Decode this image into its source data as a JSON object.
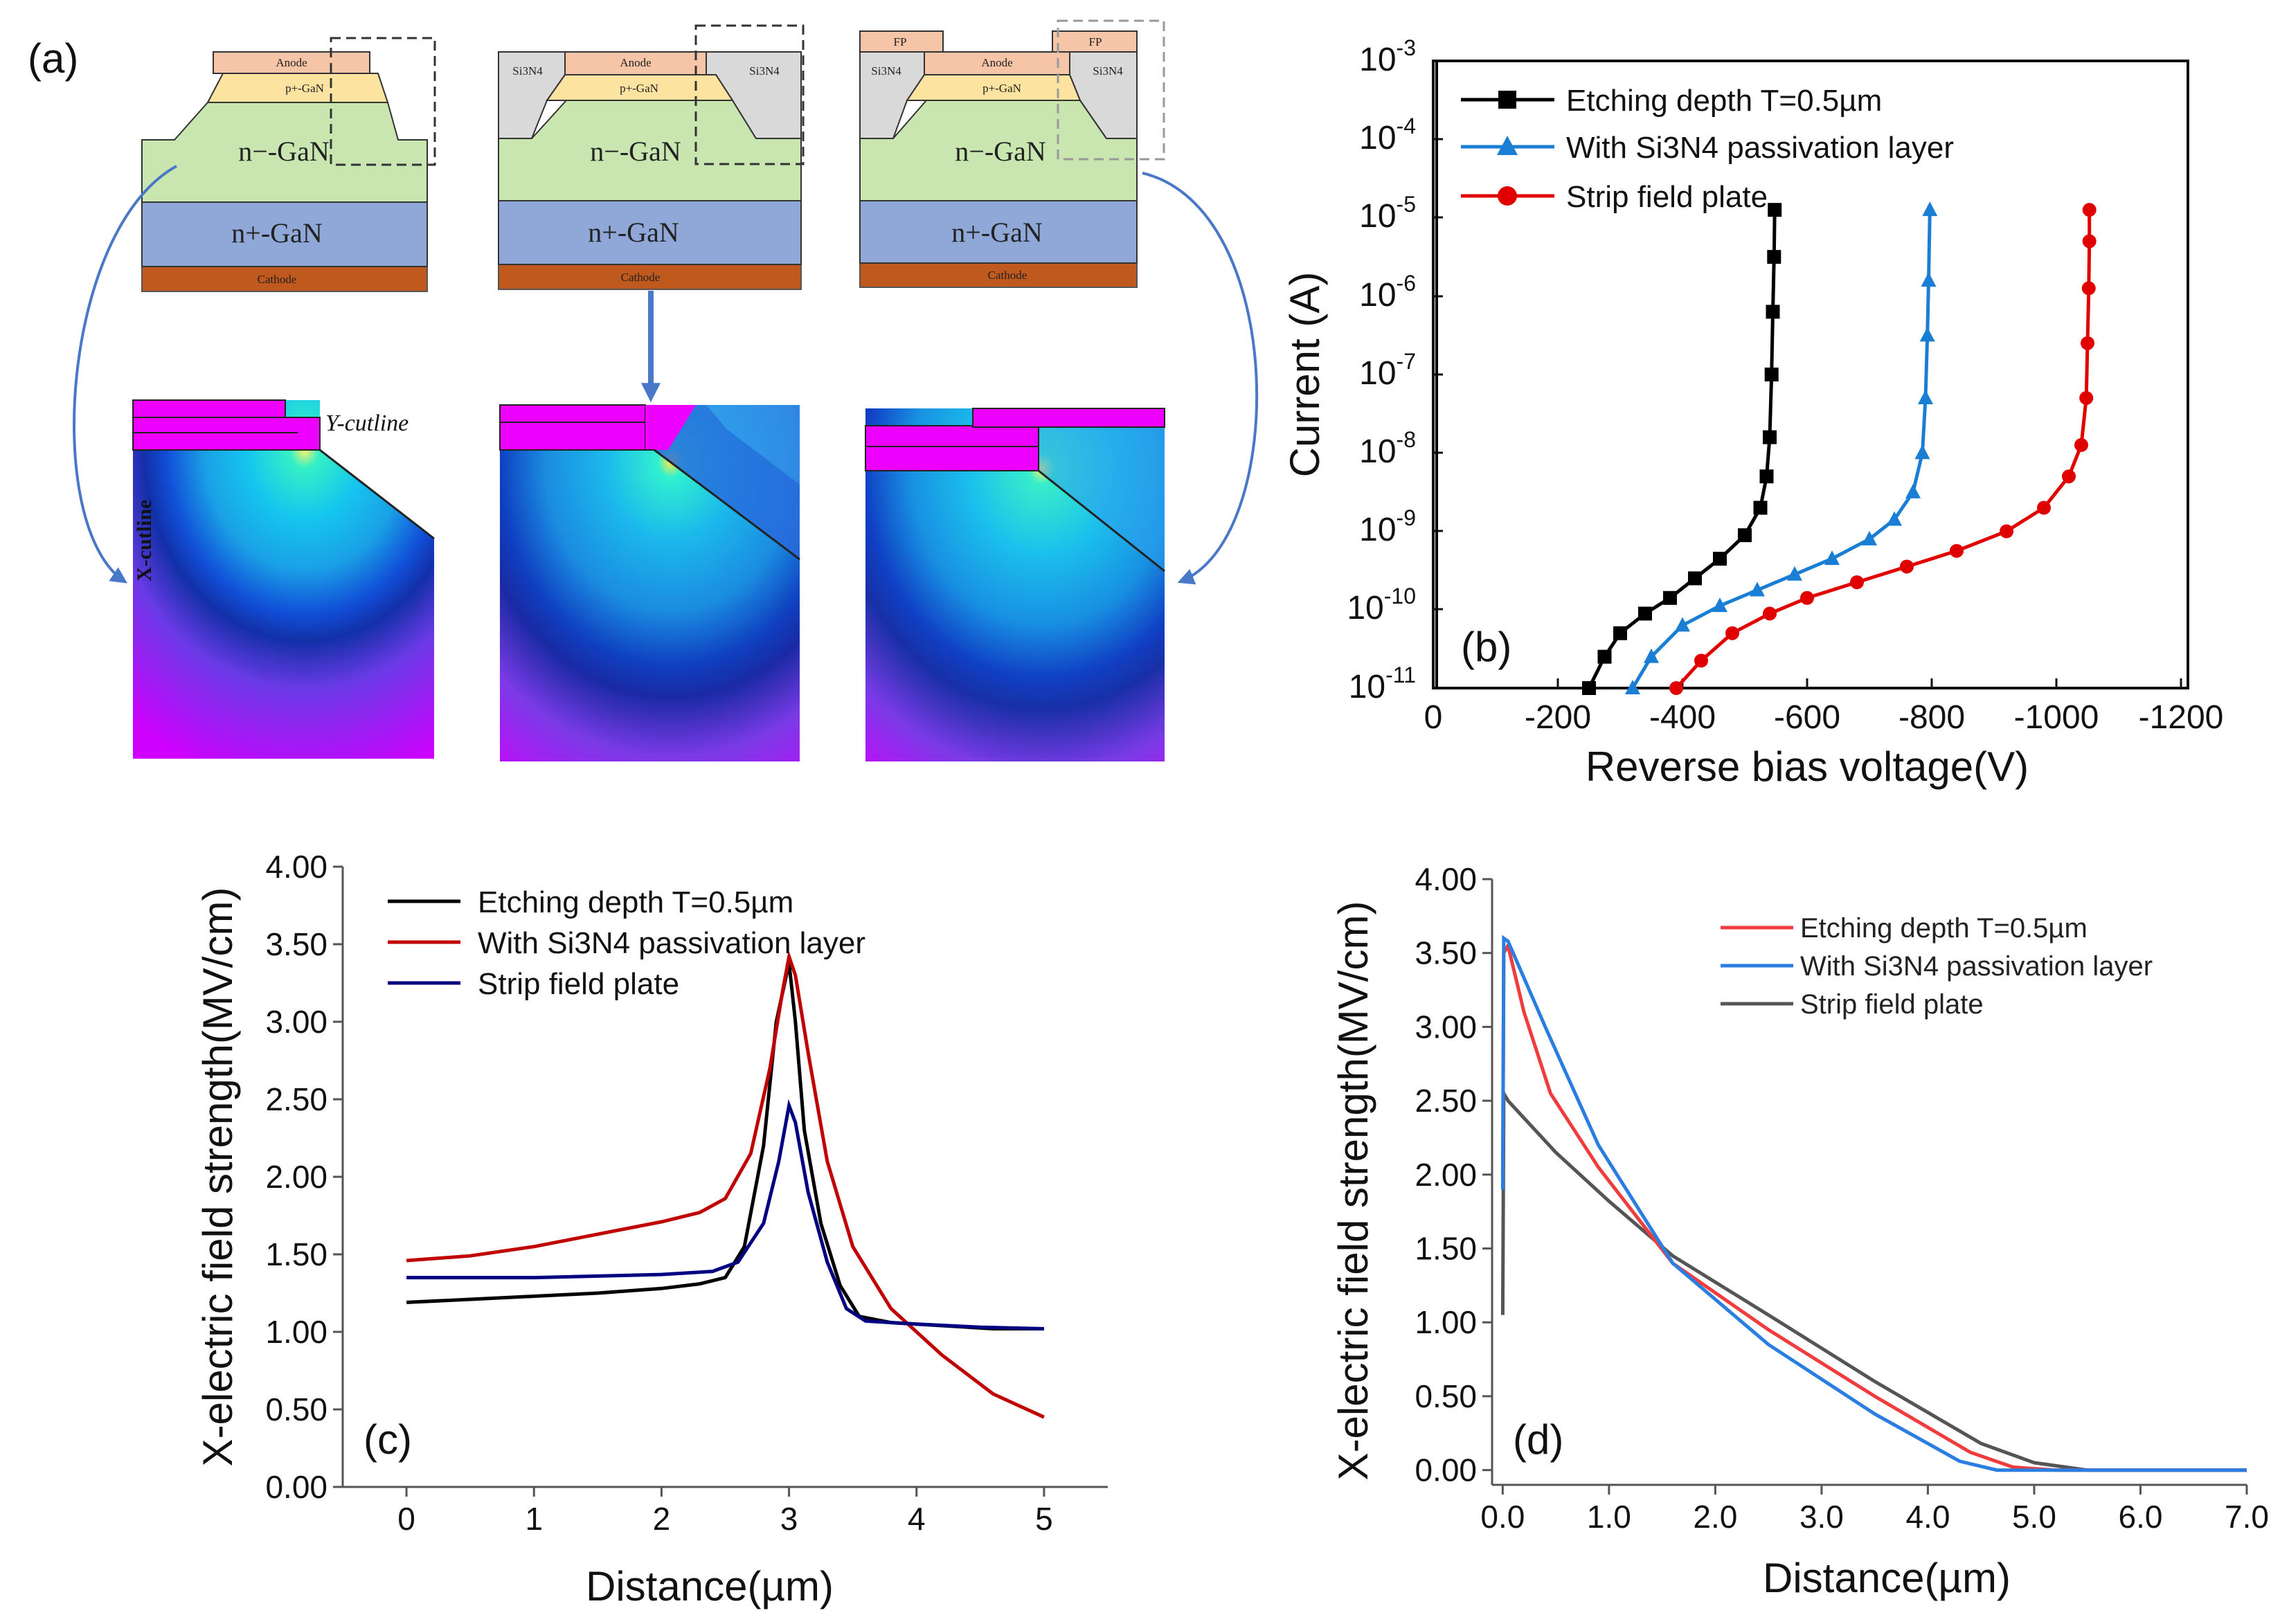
{
  "figure": {
    "panel_labels": {
      "a": "(a)",
      "b": "(b)",
      "c": "(c)",
      "d": "(d)"
    }
  },
  "devices": {
    "layers": {
      "anode": "Anode",
      "pgan": "p+-GaN",
      "ngan_minus": "n−-GaN",
      "ngan_plus": "n+-GaN",
      "cathode": "Cathode",
      "si3n4": "Si3N4",
      "fp": "FP"
    },
    "labels": {
      "y_cutline": "Y-cutline",
      "x_cutline": "X-cutline"
    },
    "colors": {
      "anode": "#f6c5a8",
      "pgan": "#fde3a0",
      "ngan_minus": "#c9e6b0",
      "ngan_plus": "#8fa8d8",
      "cathode": "#c0591e",
      "si3n4": "#d9d9d9",
      "magenta": "#ee00ff",
      "arrow": "#4a78c8"
    }
  },
  "chart_data": [
    {
      "id": "b",
      "type": "line",
      "xscale": "linear",
      "yscale": "log",
      "xlabel": "Reverse bias voltage(V)",
      "ylabel": "Current (A)",
      "xlim": [
        0,
        -1200
      ],
      "ylim_exp": [
        -11,
        -3
      ],
      "xticks": [
        0,
        -200,
        -400,
        -600,
        -800,
        -1000,
        -1200
      ],
      "xtick_labels": [
        "0",
        "-200",
        "-400",
        "-600",
        "-800",
        "-1000",
        "-1200"
      ],
      "ytick_labels": [
        "10-11",
        "10-10",
        "10-9",
        "10-8",
        "10-7",
        "10-6",
        "10-5",
        "10-4",
        "10-3"
      ],
      "ytick_base": "10",
      "ytick_exps": [
        "-11",
        "-10",
        "-9",
        "-8",
        "-7",
        "-6",
        "-5",
        "-4",
        "-3"
      ],
      "series": [
        {
          "name": "Etching depth T=0.5µm",
          "color": "#000000",
          "marker": "square",
          "points": [
            [
              -250,
              -11.0
            ],
            [
              -275,
              -10.6
            ],
            [
              -300,
              -10.3
            ],
            [
              -340,
              -10.05
            ],
            [
              -380,
              -9.85
            ],
            [
              -420,
              -9.6
            ],
            [
              -460,
              -9.35
            ],
            [
              -500,
              -9.05
            ],
            [
              -525,
              -8.7
            ],
            [
              -535,
              -8.3
            ],
            [
              -540,
              -7.8
            ],
            [
              -543,
              -7.0
            ],
            [
              -545,
              -6.2
            ],
            [
              -547,
              -5.5
            ],
            [
              -548,
              -4.9
            ]
          ]
        },
        {
          "name": "With Si3N4 passivation layer",
          "color": "#1a7fd4",
          "marker": "triangle",
          "points": [
            [
              -320,
              -11.0
            ],
            [
              -350,
              -10.6
            ],
            [
              -400,
              -10.2
            ],
            [
              -460,
              -9.95
            ],
            [
              -520,
              -9.75
            ],
            [
              -580,
              -9.55
            ],
            [
              -640,
              -9.35
            ],
            [
              -700,
              -9.1
            ],
            [
              -740,
              -8.85
            ],
            [
              -770,
              -8.5
            ],
            [
              -785,
              -8.0
            ],
            [
              -790,
              -7.3
            ],
            [
              -793,
              -6.5
            ],
            [
              -795,
              -5.8
            ],
            [
              -797,
              -4.9
            ]
          ]
        },
        {
          "name": "Strip field plate",
          "color": "#e00000",
          "marker": "circle",
          "points": [
            [
              -390,
              -11.0
            ],
            [
              -430,
              -10.65
            ],
            [
              -480,
              -10.3
            ],
            [
              -540,
              -10.05
            ],
            [
              -600,
              -9.85
            ],
            [
              -680,
              -9.65
            ],
            [
              -760,
              -9.45
            ],
            [
              -840,
              -9.25
            ],
            [
              -920,
              -9.0
            ],
            [
              -980,
              -8.7
            ],
            [
              -1020,
              -8.3
            ],
            [
              -1040,
              -7.9
            ],
            [
              -1048,
              -7.3
            ],
            [
              -1050,
              -6.6
            ],
            [
              -1052,
              -5.9
            ],
            [
              -1053,
              -5.3
            ],
            [
              -1053,
              -4.9
            ]
          ]
        }
      ]
    },
    {
      "id": "c",
      "type": "line",
      "xlabel": "Distance(µm)",
      "ylabel": "X-electric field strength(MV/cm)",
      "xlim": [
        -0.5,
        5.5
      ],
      "ylim": [
        0,
        4.0
      ],
      "xticks": [
        0,
        1,
        2,
        3,
        4,
        5
      ],
      "xtick_labels": [
        "0",
        "1",
        "2",
        "3",
        "4",
        "5"
      ],
      "yticks": [
        0,
        0.5,
        1.0,
        1.5,
        2.0,
        2.5,
        3.0,
        3.5,
        4.0
      ],
      "ytick_labels": [
        "0.00",
        "0.50",
        "1.00",
        "1.50",
        "2.00",
        "2.50",
        "3.00",
        "3.50",
        "4.00"
      ],
      "series": [
        {
          "name": "Etching depth T=0.5µm",
          "color": "#000000",
          "points": [
            [
              0,
              1.19
            ],
            [
              0.5,
              1.21
            ],
            [
              1.0,
              1.23
            ],
            [
              1.5,
              1.25
            ],
            [
              2.0,
              1.28
            ],
            [
              2.3,
              1.31
            ],
            [
              2.5,
              1.35
            ],
            [
              2.65,
              1.55
            ],
            [
              2.8,
              2.2
            ],
            [
              2.9,
              3.0
            ],
            [
              3.0,
              3.38
            ],
            [
              3.05,
              3.0
            ],
            [
              3.12,
              2.3
            ],
            [
              3.25,
              1.7
            ],
            [
              3.4,
              1.3
            ],
            [
              3.55,
              1.1
            ],
            [
              3.8,
              1.06
            ],
            [
              4.2,
              1.04
            ],
            [
              4.6,
              1.02
            ],
            [
              5.0,
              1.02
            ]
          ]
        },
        {
          "name": "With Si3N4 passivation layer",
          "color": "#c00000",
          "points": [
            [
              0,
              1.46
            ],
            [
              0.5,
              1.49
            ],
            [
              1.0,
              1.55
            ],
            [
              1.5,
              1.63
            ],
            [
              2.0,
              1.71
            ],
            [
              2.3,
              1.77
            ],
            [
              2.5,
              1.86
            ],
            [
              2.7,
              2.15
            ],
            [
              2.85,
              2.7
            ],
            [
              2.95,
              3.2
            ],
            [
              3.0,
              3.42
            ],
            [
              3.05,
              3.3
            ],
            [
              3.15,
              2.8
            ],
            [
              3.3,
              2.1
            ],
            [
              3.5,
              1.55
            ],
            [
              3.8,
              1.15
            ],
            [
              4.2,
              0.85
            ],
            [
              4.6,
              0.6
            ],
            [
              5.0,
              0.45
            ]
          ]
        },
        {
          "name": "Strip field plate",
          "color": "#000080",
          "points": [
            [
              0,
              1.35
            ],
            [
              0.5,
              1.35
            ],
            [
              1.0,
              1.35
            ],
            [
              1.5,
              1.36
            ],
            [
              2.0,
              1.37
            ],
            [
              2.4,
              1.39
            ],
            [
              2.6,
              1.45
            ],
            [
              2.8,
              1.7
            ],
            [
              2.92,
              2.1
            ],
            [
              3.0,
              2.46
            ],
            [
              3.05,
              2.35
            ],
            [
              3.15,
              1.9
            ],
            [
              3.3,
              1.45
            ],
            [
              3.45,
              1.15
            ],
            [
              3.6,
              1.07
            ],
            [
              4.0,
              1.05
            ],
            [
              4.5,
              1.03
            ],
            [
              5.0,
              1.02
            ]
          ]
        }
      ]
    },
    {
      "id": "d",
      "type": "line",
      "xlabel": "Distance(µm)",
      "ylabel": "X-electric field strength(MV/cm)",
      "xlim": [
        -0.1,
        7.0
      ],
      "ylim": [
        -0.1,
        4.0
      ],
      "xticks": [
        0,
        1,
        2,
        3,
        4,
        5,
        6,
        7
      ],
      "xtick_labels": [
        "0.0",
        "1.0",
        "2.0",
        "3.0",
        "4.0",
        "5.0",
        "6.0",
        "7.0"
      ],
      "yticks": [
        0,
        0.5,
        1.0,
        1.5,
        2.0,
        2.5,
        3.0,
        3.5,
        4.0
      ],
      "ytick_labels": [
        "0.00",
        "0.50",
        "1.00",
        "1.50",
        "2.00",
        "2.50",
        "3.00",
        "3.50",
        "4.00"
      ],
      "series": [
        {
          "name": "Etching depth T=0.5µm",
          "color": "#f03c3c",
          "points": [
            [
              0,
              2.0
            ],
            [
              0.01,
              3.5
            ],
            [
              0.05,
              3.55
            ],
            [
              0.2,
              3.1
            ],
            [
              0.45,
              2.55
            ],
            [
              0.9,
              2.05
            ],
            [
              1.6,
              1.4
            ],
            [
              2.5,
              0.95
            ],
            [
              3.5,
              0.5
            ],
            [
              4.4,
              0.12
            ],
            [
              4.8,
              0.02
            ],
            [
              5.2,
              0.0
            ],
            [
              7.0,
              0.0
            ]
          ]
        },
        {
          "name": "With Si3N4 passivation layer",
          "color": "#2a7de1",
          "points": [
            [
              0,
              1.9
            ],
            [
              0.01,
              3.6
            ],
            [
              0.05,
              3.58
            ],
            [
              0.4,
              3.0
            ],
            [
              0.9,
              2.2
            ],
            [
              1.6,
              1.4
            ],
            [
              2.5,
              0.85
            ],
            [
              3.5,
              0.38
            ],
            [
              4.3,
              0.06
            ],
            [
              4.65,
              0.0
            ],
            [
              7.0,
              0.0
            ]
          ]
        },
        {
          "name": "Strip field plate",
          "color": "#555555",
          "points": [
            [
              0,
              1.05
            ],
            [
              0.01,
              2.55
            ],
            [
              0.05,
              2.5
            ],
            [
              0.5,
              2.15
            ],
            [
              1.0,
              1.82
            ],
            [
              1.6,
              1.45
            ],
            [
              2.5,
              1.05
            ],
            [
              3.5,
              0.6
            ],
            [
              4.5,
              0.18
            ],
            [
              5.0,
              0.05
            ],
            [
              5.5,
              0.0
            ],
            [
              7.0,
              0.0
            ]
          ]
        }
      ]
    }
  ]
}
